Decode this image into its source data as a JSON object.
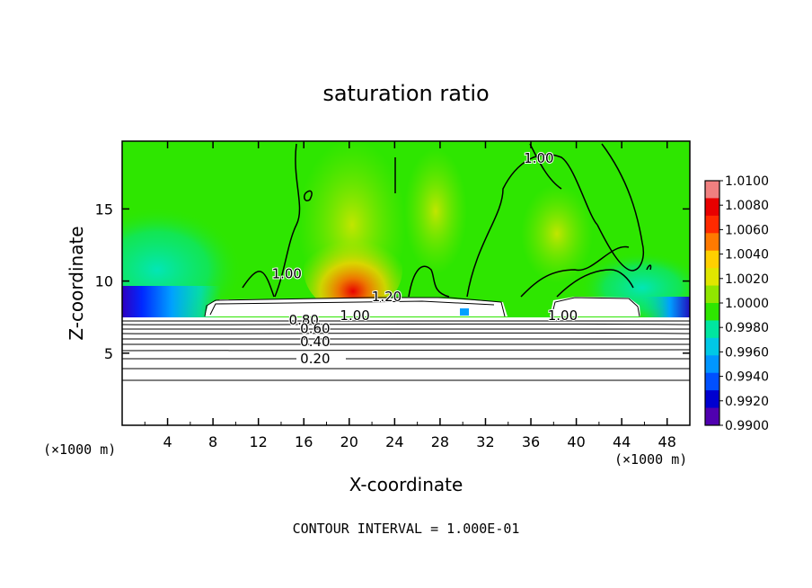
{
  "chart_data": {
    "type": "heatmap",
    "title": "saturation ratio",
    "xlabel": "X-coordinate",
    "ylabel": "Z-coordinate",
    "x_unit": "(×1000 m)",
    "y_unit": "(×1000 m)",
    "xlim": [
      0,
      50
    ],
    "ylim": [
      0,
      19.7
    ],
    "x_ticks": [
      4,
      8,
      12,
      16,
      20,
      24,
      28,
      32,
      36,
      40,
      44,
      48
    ],
    "y_ticks": [
      5,
      10,
      15
    ],
    "colorbar": {
      "min": 0.99,
      "max": 1.01,
      "labels": [
        "1.0100",
        "1.0080",
        "1.0060",
        "1.0040",
        "1.0020",
        "1.0000",
        "0.9980",
        "0.9960",
        "0.9940",
        "0.9920",
        "0.9900"
      ],
      "colors": [
        "#f08080",
        "#e80000",
        "#ff2a00",
        "#ff7a00",
        "#ffd000",
        "#e0e600",
        "#90e600",
        "#2ee600",
        "#00e6a0",
        "#00c8e6",
        "#0096ff",
        "#0050ff",
        "#0000d0",
        "#5000b0"
      ]
    },
    "contour_labels": [
      {
        "text": "1.00",
        "x": 20.5,
        "y": 7.6
      },
      {
        "text": "1.20",
        "x": 23.3,
        "y": 8.9
      },
      {
        "text": "0.80",
        "x": 16.0,
        "y": 7.3
      },
      {
        "text": "0.60",
        "x": 17.0,
        "y": 6.7
      },
      {
        "text": "0.40",
        "x": 17.0,
        "y": 5.8
      },
      {
        "text": "0.20",
        "x": 17.0,
        "y": 4.6
      },
      {
        "text": "1.00",
        "x": 38.8,
        "y": 7.6
      },
      {
        "text": "1.00",
        "x": 36.7,
        "y": 18.5
      },
      {
        "text": "1.00",
        "x": 14.5,
        "y": 10.5
      }
    ],
    "footnote": "CONTOUR INTERVAL = 1.000E-01"
  }
}
